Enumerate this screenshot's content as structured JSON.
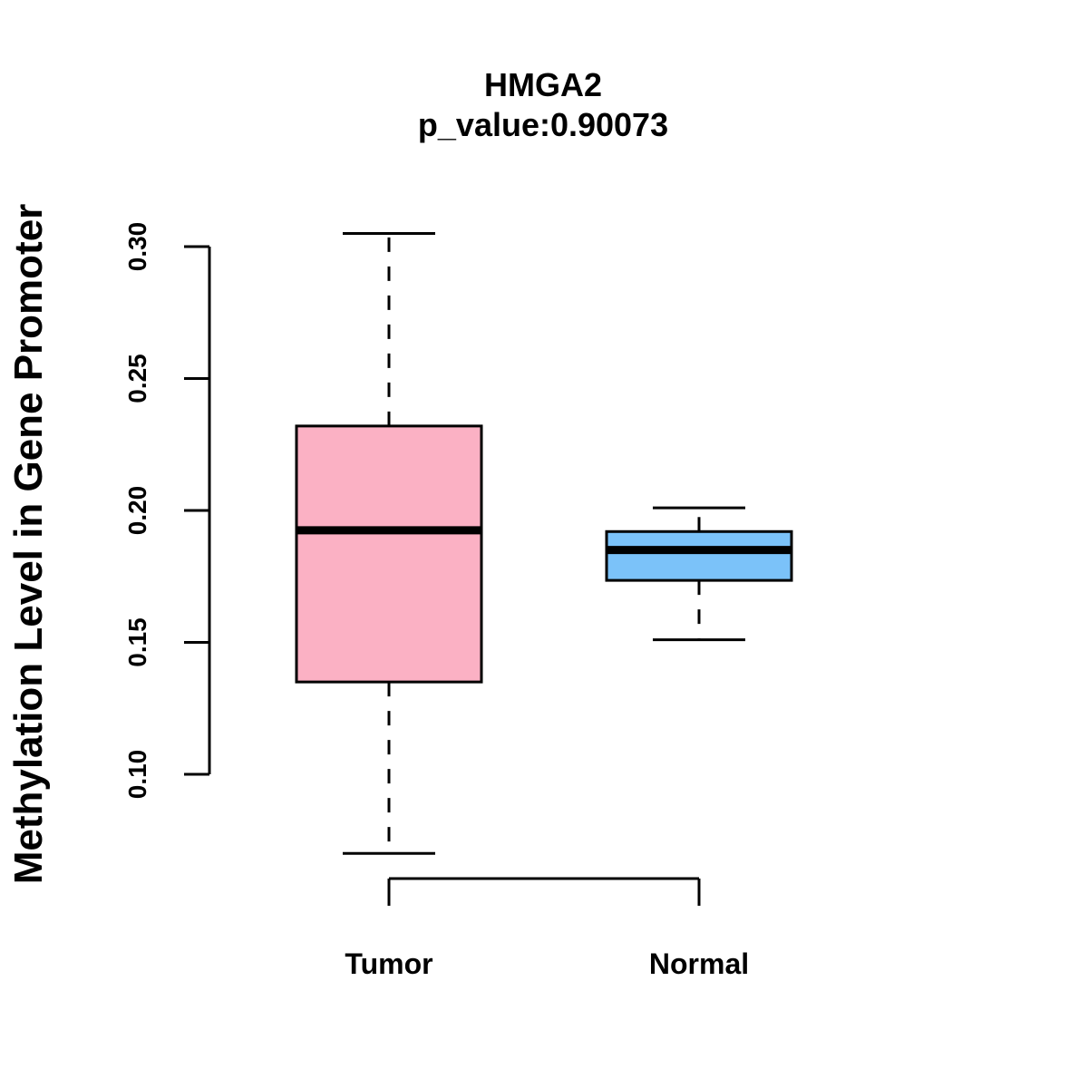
{
  "chart_data": {
    "type": "boxplot",
    "title": "HMGA2",
    "subtitle": "p_value:0.90073",
    "xlabel": "",
    "ylabel": "Methylation Level in Gene Promoter",
    "ylim": [
      0.1,
      0.3
    ],
    "yticks": [
      0.1,
      0.15,
      0.2,
      0.25,
      0.3
    ],
    "ytick_labels": [
      "0.10",
      "0.15",
      "0.20",
      "0.25",
      "0.30"
    ],
    "grid": false,
    "categories": [
      "Tumor",
      "Normal"
    ],
    "series": [
      {
        "name": "Tumor",
        "color": "#FBB1C4",
        "whisker_low": 0.07,
        "q1": 0.135,
        "median": 0.1925,
        "q3": 0.232,
        "whisker_high": 0.305
      },
      {
        "name": "Normal",
        "color": "#7BC2F9",
        "whisker_low": 0.151,
        "q1": 0.1735,
        "median": 0.185,
        "q3": 0.192,
        "whisker_high": 0.201
      }
    ]
  }
}
